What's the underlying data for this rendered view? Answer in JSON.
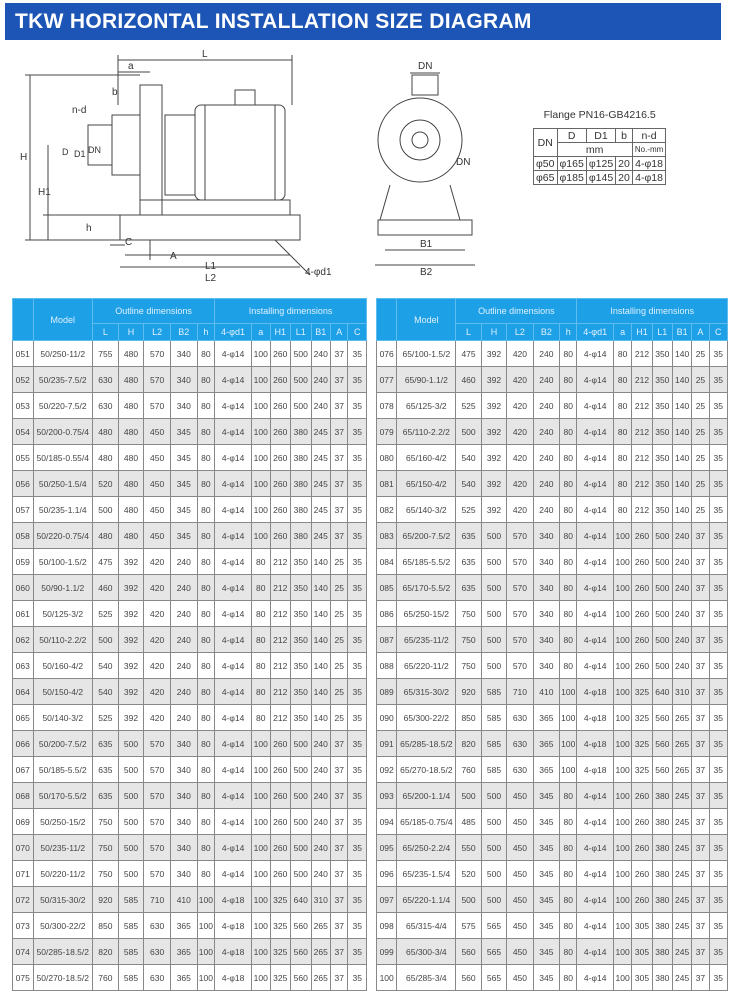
{
  "title": "TKW HORIZONTAL INSTALLATION SIZE DIAGRAM",
  "diagram_labels": {
    "L": "L",
    "a": "a",
    "b": "b",
    "nd": "n-d",
    "H": "H",
    "D": "D",
    "D1": "D1",
    "DN": "DN",
    "H1": "H1",
    "h": "h",
    "C": "C",
    "A": "A",
    "L1": "L1",
    "L2": "L2",
    "d1": "4-φd1",
    "DN_top": "DN",
    "DN_side": "DN",
    "B1": "B1",
    "B2": "B2"
  },
  "flange": {
    "title": "Flange PN16-GB4216.5",
    "headers": [
      "DN",
      "D",
      "D1",
      "b",
      "n-d"
    ],
    "unit_mm": "mm",
    "unit_nd": "No.-mm",
    "rows": [
      [
        "φ50",
        "φ165",
        "φ125",
        "20",
        "4-φ18"
      ],
      [
        "φ65",
        "φ185",
        "φ145",
        "20",
        "4-φ18"
      ]
    ]
  },
  "table": {
    "model_header": "Model",
    "outline_header": "Outline dimensions",
    "installing_header": "Installing dimensions",
    "columns": [
      "L",
      "H",
      "L2",
      "B2",
      "h",
      "4-φd1",
      "a",
      "H1",
      "L1",
      "B1",
      "A",
      "C"
    ],
    "left_rows": [
      [
        "051",
        "50/250-11/2",
        "755",
        "480",
        "570",
        "340",
        "80",
        "4-φ14",
        "100",
        "260",
        "500",
        "240",
        "37",
        "35"
      ],
      [
        "052",
        "50/235-7.5/2",
        "630",
        "480",
        "570",
        "340",
        "80",
        "4-φ14",
        "100",
        "260",
        "500",
        "240",
        "37",
        "35"
      ],
      [
        "053",
        "50/220-7.5/2",
        "630",
        "480",
        "570",
        "340",
        "80",
        "4-φ14",
        "100",
        "260",
        "500",
        "240",
        "37",
        "35"
      ],
      [
        "054",
        "50/200-0.75/4",
        "480",
        "480",
        "450",
        "345",
        "80",
        "4-φ14",
        "100",
        "260",
        "380",
        "245",
        "37",
        "35"
      ],
      [
        "055",
        "50/185-0.55/4",
        "480",
        "480",
        "450",
        "345",
        "80",
        "4-φ14",
        "100",
        "260",
        "380",
        "245",
        "37",
        "35"
      ],
      [
        "056",
        "50/250-1.5/4",
        "520",
        "480",
        "450",
        "345",
        "80",
        "4-φ14",
        "100",
        "260",
        "380",
        "245",
        "37",
        "35"
      ],
      [
        "057",
        "50/235-1.1/4",
        "500",
        "480",
        "450",
        "345",
        "80",
        "4-φ14",
        "100",
        "260",
        "380",
        "245",
        "37",
        "35"
      ],
      [
        "058",
        "50/220-0.75/4",
        "480",
        "480",
        "450",
        "345",
        "80",
        "4-φ14",
        "100",
        "260",
        "380",
        "245",
        "37",
        "35"
      ],
      [
        "059",
        "50/100-1.5/2",
        "475",
        "392",
        "420",
        "240",
        "80",
        "4-φ14",
        "80",
        "212",
        "350",
        "140",
        "25",
        "35"
      ],
      [
        "060",
        "50/90-1.1/2",
        "460",
        "392",
        "420",
        "240",
        "80",
        "4-φ14",
        "80",
        "212",
        "350",
        "140",
        "25",
        "35"
      ],
      [
        "061",
        "50/125-3/2",
        "525",
        "392",
        "420",
        "240",
        "80",
        "4-φ14",
        "80",
        "212",
        "350",
        "140",
        "25",
        "35"
      ],
      [
        "062",
        "50/110-2.2/2",
        "500",
        "392",
        "420",
        "240",
        "80",
        "4-φ14",
        "80",
        "212",
        "350",
        "140",
        "25",
        "35"
      ],
      [
        "063",
        "50/160-4/2",
        "540",
        "392",
        "420",
        "240",
        "80",
        "4-φ14",
        "80",
        "212",
        "350",
        "140",
        "25",
        "35"
      ],
      [
        "064",
        "50/150-4/2",
        "540",
        "392",
        "420",
        "240",
        "80",
        "4-φ14",
        "80",
        "212",
        "350",
        "140",
        "25",
        "35"
      ],
      [
        "065",
        "50/140-3/2",
        "525",
        "392",
        "420",
        "240",
        "80",
        "4-φ14",
        "80",
        "212",
        "350",
        "140",
        "25",
        "35"
      ],
      [
        "066",
        "50/200-7.5/2",
        "635",
        "500",
        "570",
        "340",
        "80",
        "4-φ14",
        "100",
        "260",
        "500",
        "240",
        "37",
        "35"
      ],
      [
        "067",
        "50/185-5.5/2",
        "635",
        "500",
        "570",
        "340",
        "80",
        "4-φ14",
        "100",
        "260",
        "500",
        "240",
        "37",
        "35"
      ],
      [
        "068",
        "50/170-5.5/2",
        "635",
        "500",
        "570",
        "340",
        "80",
        "4-φ14",
        "100",
        "260",
        "500",
        "240",
        "37",
        "35"
      ],
      [
        "069",
        "50/250-15/2",
        "750",
        "500",
        "570",
        "340",
        "80",
        "4-φ14",
        "100",
        "260",
        "500",
        "240",
        "37",
        "35"
      ],
      [
        "070",
        "50/235-11/2",
        "750",
        "500",
        "570",
        "340",
        "80",
        "4-φ14",
        "100",
        "260",
        "500",
        "240",
        "37",
        "35"
      ],
      [
        "071",
        "50/220-11/2",
        "750",
        "500",
        "570",
        "340",
        "80",
        "4-φ14",
        "100",
        "260",
        "500",
        "240",
        "37",
        "35"
      ],
      [
        "072",
        "50/315-30/2",
        "920",
        "585",
        "710",
        "410",
        "100",
        "4-φ18",
        "100",
        "325",
        "640",
        "310",
        "37",
        "35"
      ],
      [
        "073",
        "50/300-22/2",
        "850",
        "585",
        "630",
        "365",
        "100",
        "4-φ18",
        "100",
        "325",
        "560",
        "265",
        "37",
        "35"
      ],
      [
        "074",
        "50/285-18.5/2",
        "820",
        "585",
        "630",
        "365",
        "100",
        "4-φ18",
        "100",
        "325",
        "560",
        "265",
        "37",
        "35"
      ],
      [
        "075",
        "50/270-18.5/2",
        "760",
        "585",
        "630",
        "365",
        "100",
        "4-φ18",
        "100",
        "325",
        "560",
        "265",
        "37",
        "35"
      ]
    ],
    "right_rows": [
      [
        "076",
        "65/100-1.5/2",
        "475",
        "392",
        "420",
        "240",
        "80",
        "4-φ14",
        "80",
        "212",
        "350",
        "140",
        "25",
        "35"
      ],
      [
        "077",
        "65/90-1.1/2",
        "460",
        "392",
        "420",
        "240",
        "80",
        "4-φ14",
        "80",
        "212",
        "350",
        "140",
        "25",
        "35"
      ],
      [
        "078",
        "65/125-3/2",
        "525",
        "392",
        "420",
        "240",
        "80",
        "4-φ14",
        "80",
        "212",
        "350",
        "140",
        "25",
        "35"
      ],
      [
        "079",
        "65/110-2.2/2",
        "500",
        "392",
        "420",
        "240",
        "80",
        "4-φ14",
        "80",
        "212",
        "350",
        "140",
        "25",
        "35"
      ],
      [
        "080",
        "65/160-4/2",
        "540",
        "392",
        "420",
        "240",
        "80",
        "4-φ14",
        "80",
        "212",
        "350",
        "140",
        "25",
        "35"
      ],
      [
        "081",
        "65/150-4/2",
        "540",
        "392",
        "420",
        "240",
        "80",
        "4-φ14",
        "80",
        "212",
        "350",
        "140",
        "25",
        "35"
      ],
      [
        "082",
        "65/140-3/2",
        "525",
        "392",
        "420",
        "240",
        "80",
        "4-φ14",
        "80",
        "212",
        "350",
        "140",
        "25",
        "35"
      ],
      [
        "083",
        "65/200-7.5/2",
        "635",
        "500",
        "570",
        "340",
        "80",
        "4-φ14",
        "100",
        "260",
        "500",
        "240",
        "37",
        "35"
      ],
      [
        "084",
        "65/185-5.5/2",
        "635",
        "500",
        "570",
        "340",
        "80",
        "4-φ14",
        "100",
        "260",
        "500",
        "240",
        "37",
        "35"
      ],
      [
        "085",
        "65/170-5.5/2",
        "635",
        "500",
        "570",
        "340",
        "80",
        "4-φ14",
        "100",
        "260",
        "500",
        "240",
        "37",
        "35"
      ],
      [
        "086",
        "65/250-15/2",
        "750",
        "500",
        "570",
        "340",
        "80",
        "4-φ14",
        "100",
        "260",
        "500",
        "240",
        "37",
        "35"
      ],
      [
        "087",
        "65/235-11/2",
        "750",
        "500",
        "570",
        "340",
        "80",
        "4-φ14",
        "100",
        "260",
        "500",
        "240",
        "37",
        "35"
      ],
      [
        "088",
        "65/220-11/2",
        "750",
        "500",
        "570",
        "340",
        "80",
        "4-φ14",
        "100",
        "260",
        "500",
        "240",
        "37",
        "35"
      ],
      [
        "089",
        "65/315-30/2",
        "920",
        "585",
        "710",
        "410",
        "100",
        "4-φ18",
        "100",
        "325",
        "640",
        "310",
        "37",
        "35"
      ],
      [
        "090",
        "65/300-22/2",
        "850",
        "585",
        "630",
        "365",
        "100",
        "4-φ18",
        "100",
        "325",
        "560",
        "265",
        "37",
        "35"
      ],
      [
        "091",
        "65/285-18.5/2",
        "820",
        "585",
        "630",
        "365",
        "100",
        "4-φ18",
        "100",
        "325",
        "560",
        "265",
        "37",
        "35"
      ],
      [
        "092",
        "65/270-18.5/2",
        "760",
        "585",
        "630",
        "365",
        "100",
        "4-φ18",
        "100",
        "325",
        "560",
        "265",
        "37",
        "35"
      ],
      [
        "093",
        "65/200-1.1/4",
        "500",
        "500",
        "450",
        "345",
        "80",
        "4-φ14",
        "100",
        "260",
        "380",
        "245",
        "37",
        "35"
      ],
      [
        "094",
        "65/185-0.75/4",
        "485",
        "500",
        "450",
        "345",
        "80",
        "4-φ14",
        "100",
        "260",
        "380",
        "245",
        "37",
        "35"
      ],
      [
        "095",
        "65/250-2.2/4",
        "550",
        "500",
        "450",
        "345",
        "80",
        "4-φ14",
        "100",
        "260",
        "380",
        "245",
        "37",
        "35"
      ],
      [
        "096",
        "65/235-1.5/4",
        "520",
        "500",
        "450",
        "345",
        "80",
        "4-φ14",
        "100",
        "260",
        "380",
        "245",
        "37",
        "35"
      ],
      [
        "097",
        "65/220-1.1/4",
        "500",
        "500",
        "450",
        "345",
        "80",
        "4-φ14",
        "100",
        "260",
        "380",
        "245",
        "37",
        "35"
      ],
      [
        "098",
        "65/315-4/4",
        "575",
        "565",
        "450",
        "345",
        "80",
        "4-φ14",
        "100",
        "305",
        "380",
        "245",
        "37",
        "35"
      ],
      [
        "099",
        "65/300-3/4",
        "560",
        "565",
        "450",
        "345",
        "80",
        "4-φ14",
        "100",
        "305",
        "380",
        "245",
        "37",
        "35"
      ],
      [
        "100",
        "65/285-3/4",
        "560",
        "565",
        "450",
        "345",
        "80",
        "4-φ14",
        "100",
        "305",
        "380",
        "245",
        "37",
        "35"
      ]
    ]
  }
}
